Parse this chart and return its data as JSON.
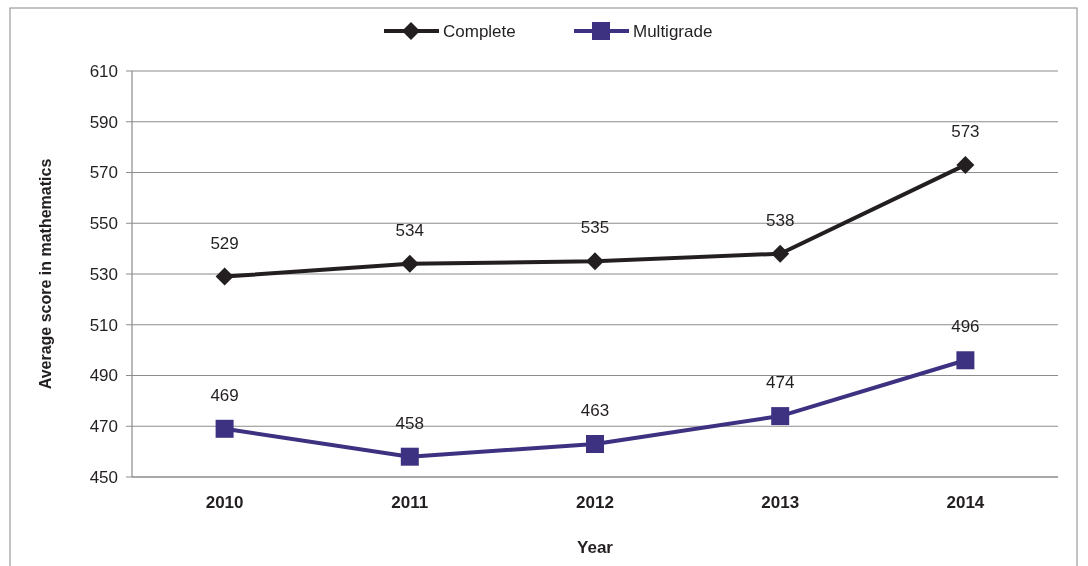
{
  "chart_data": {
    "type": "line",
    "xlabel": "Year",
    "ylabel": "Average score in mathematics",
    "categories": [
      "2010",
      "2011",
      "2012",
      "2013",
      "2014"
    ],
    "series": [
      {
        "name": "Complete",
        "color": "#231f20",
        "marker": "diamond",
        "values": [
          529,
          534,
          535,
          538,
          573
        ]
      },
      {
        "name": "Multigrade",
        "color": "#3d3281",
        "marker": "square",
        "values": [
          469,
          458,
          463,
          474,
          496
        ]
      }
    ],
    "ylim": [
      450,
      610
    ],
    "yticks": [
      450,
      470,
      490,
      510,
      530,
      550,
      570,
      590,
      610
    ],
    "grid": "y",
    "legend": "top",
    "data_labels": true
  }
}
